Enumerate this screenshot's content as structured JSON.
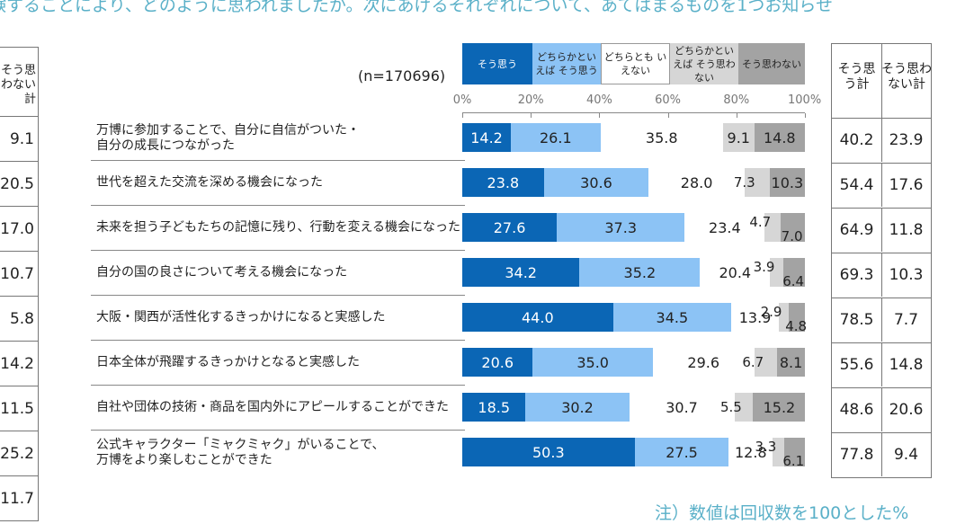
{
  "question_fragment": "験することにより、どのように思われましたか。次にあげるそれぞれについて、あてはまるものを1つお知らせ",
  "left_prev_table": {
    "header": "そう思わない計",
    "values": [
      "9.1",
      "20.5",
      "17.0",
      "10.7",
      "5.8",
      "14.2",
      "11.5",
      "25.2",
      "11.7"
    ]
  },
  "n_label": "(n=170696)",
  "note": "注）数値は回収数を100とした%",
  "summary_headers": [
    "そう思う計",
    "そう思わない計"
  ],
  "colors": {
    "agree": "#0b66b5",
    "somewhat_agree": "#8cc3f5",
    "neutral": "#ffffff",
    "somewhat_disagree": "#d6d6d6",
    "disagree": "#a3a3a3",
    "accent_text": "#5ab0c8"
  },
  "chart_data": {
    "type": "bar",
    "orientation": "horizontal",
    "stacked": true,
    "xlim": [
      0,
      100
    ],
    "x_ticks": [
      "0%",
      "20%",
      "40%",
      "60%",
      "80%",
      "100%"
    ],
    "legend_position": "top",
    "categories": [
      "万博に参加することで、自分に自信がついた・\n自分の成長につながった",
      "世代を超えた交流を深める機会になった",
      "未来を担う子どもたちの記憶に残り、行動を変える機会になった",
      "自分の国の良さについて考える機会になった",
      "大阪・関西が活性化するきっかけになると実感した",
      "日本全体が飛躍するきっかけとなると実感した",
      "自社や団体の技術・商品を国内外にアピールすることができた",
      "公式キャラクター「ミャクミャク」がいることで、\n万博をより楽しむことができた"
    ],
    "series": [
      {
        "name": "そう思う",
        "values": [
          14.2,
          23.8,
          27.6,
          34.2,
          44.0,
          20.6,
          18.5,
          50.3
        ]
      },
      {
        "name": "どちらかといえば そう思う",
        "values": [
          26.1,
          30.6,
          37.3,
          35.2,
          34.5,
          35.0,
          30.2,
          27.5
        ]
      },
      {
        "name": "どちらとも いえない",
        "values": [
          35.8,
          28.0,
          23.4,
          20.4,
          13.9,
          29.6,
          30.7,
          12.8
        ]
      },
      {
        "name": "どちらかといえば そう思わない",
        "values": [
          9.1,
          7.3,
          4.7,
          3.9,
          2.9,
          6.7,
          5.5,
          3.3
        ]
      },
      {
        "name": "そう思わない",
        "values": [
          14.8,
          10.3,
          7.0,
          6.4,
          4.8,
          8.1,
          15.2,
          6.1
        ]
      }
    ],
    "summary": {
      "agree_total": [
        "40.2",
        "54.4",
        "64.9",
        "69.3",
        "78.5",
        "55.6",
        "48.6",
        "77.8"
      ],
      "disagree_total": [
        "23.9",
        "17.6",
        "11.8",
        "10.3",
        "7.7",
        "14.8",
        "20.6",
        "9.4"
      ]
    }
  }
}
